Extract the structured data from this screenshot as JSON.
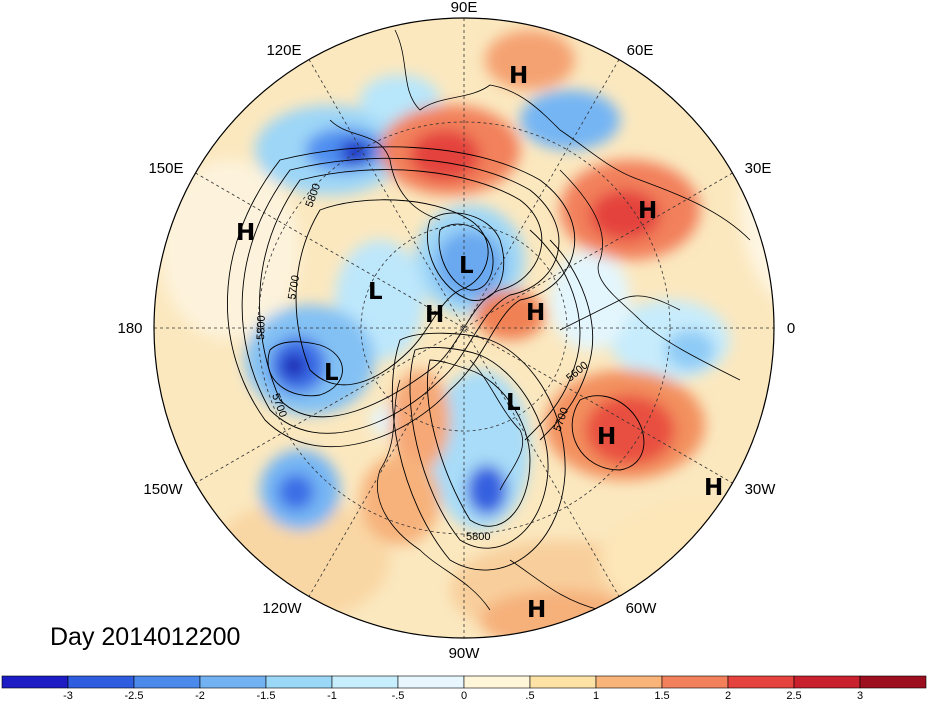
{
  "title": "Day 2014012200",
  "longitude_labels": [
    "90E",
    "60E",
    "30E",
    "0",
    "30W",
    "60W",
    "90W",
    "120W",
    "150W",
    "180",
    "150E",
    "120E"
  ],
  "pressure_centers": [
    "H",
    "H",
    "H",
    "H",
    "H",
    "H",
    "H",
    "H",
    "L",
    "L",
    "L",
    "L"
  ],
  "contour_labels": [
    "5800",
    "5700",
    "5800",
    "5700",
    "5600",
    "5700",
    "5800"
  ],
  "colorbar": {
    "ticks": [
      "-3",
      "-2.5",
      "-2",
      "-1.5",
      "-1",
      "-.5",
      "0",
      ".5",
      "1",
      "1.5",
      "2",
      "2.5",
      "3"
    ],
    "colors": [
      "#1d1cc4",
      "#2e5de0",
      "#4b8aea",
      "#72b1f2",
      "#9bd8f8",
      "#c7eefc",
      "#e7f7fd",
      "#fff6d9",
      "#fde2a6",
      "#f9b47a",
      "#f2805b",
      "#e4433e",
      "#c8202d",
      "#9d0e1f"
    ]
  },
  "palette": {
    "ocean_base": "#fbe8bf",
    "coast": "#000000"
  }
}
